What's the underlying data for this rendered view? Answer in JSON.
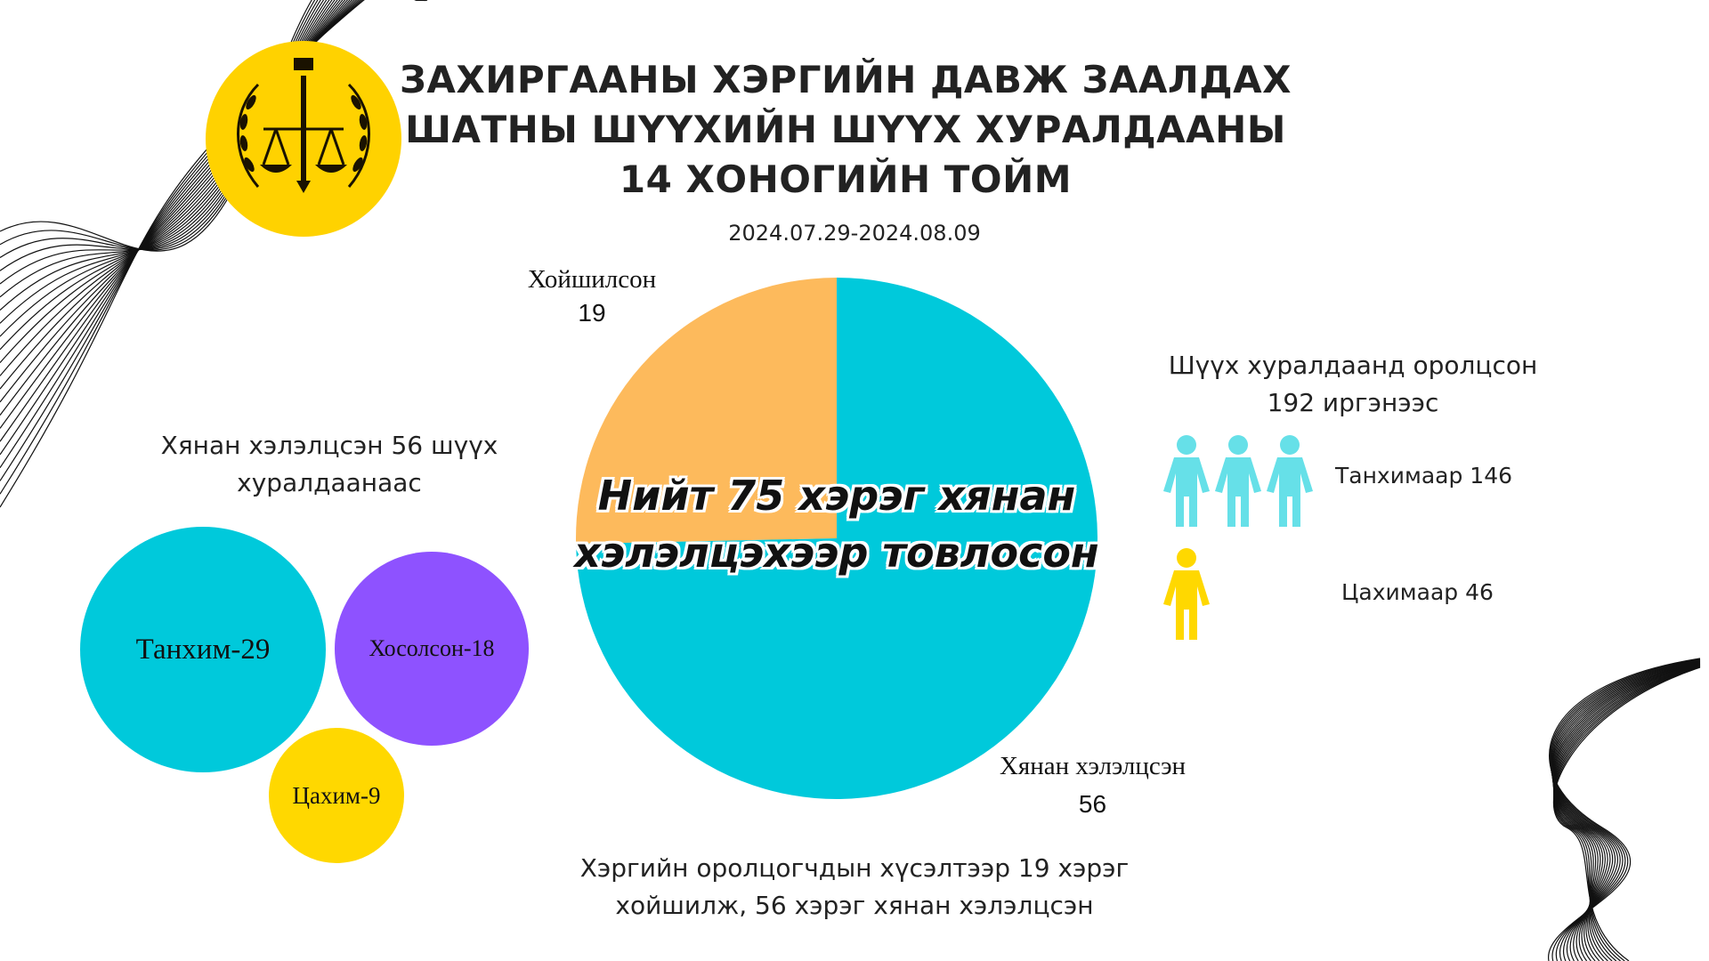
{
  "header": {
    "title_lines": [
      "ЗАХИРГААНЫ ХЭРГИЙН ДАВЖ ЗААЛДАХ",
      "ШАТНЫ ШҮҮХИЙН ШҮҮХ ХУРАЛДААНЫ",
      "14 ХОНОГИЙН ТОЙМ"
    ],
    "date_range": "2024.07.29-2024.08.09"
  },
  "colors": {
    "accent_teal": "#00C9DB",
    "accent_orange": "#FDBA5C",
    "accent_purple": "#8E52FF",
    "accent_yellow": "#FFD800",
    "people_light": "#66E0E8"
  },
  "icons": {
    "emblem": "court-emblem-icon",
    "person": "person-icon",
    "decor": "wave-lines-decoration"
  },
  "chart_data": [
    {
      "type": "pie",
      "categories": [
        "Хойшилсон",
        "Хянан хэлэлцсэн"
      ],
      "values": [
        19,
        56
      ],
      "labels": [
        {
          "name": "Хойшилсон",
          "value": "19"
        },
        {
          "name": "Хянан хэлэлцсэн",
          "value": "56"
        }
      ],
      "colors": [
        "#FDBA5C",
        "#00C9DB"
      ],
      "center_text_lines": [
        "Нийт 75 хэрэг хянан",
        "хэлэлцэхээр товлосон"
      ],
      "caption_lines": [
        "Хэргийн оролцогчдын хүсэлтээр 19 хэрэг",
        "хойшилж, 56 хэрэг хянан хэлэлцсэн"
      ]
    },
    {
      "type": "bubble",
      "heading_lines": [
        "Хянан хэлэлцсэн 56 шүүх",
        "хуралдаанаас"
      ],
      "items": [
        {
          "label": "Танхим-29",
          "value": 29,
          "color": "#00C9DB"
        },
        {
          "label": "Хосолсон-18",
          "value": 18,
          "color": "#8E52FF"
        },
        {
          "label": "Цахим-9",
          "value": 9,
          "color": "#FFD800"
        }
      ]
    },
    {
      "type": "pictogram",
      "heading_lines": [
        "Шүүх хуралдаанд оролцсон",
        "192 иргэнээс"
      ],
      "groups": [
        {
          "label": "Танхимаар 146",
          "value": 146,
          "icons": 3,
          "color": "#66E0E8"
        },
        {
          "label": "Цахимаар 46",
          "value": 46,
          "icons": 1,
          "color": "#FFD800"
        }
      ]
    }
  ]
}
